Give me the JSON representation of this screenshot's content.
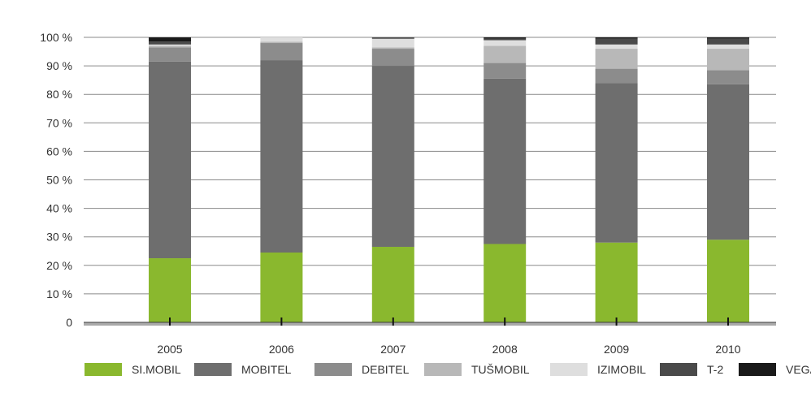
{
  "chart_data": {
    "type": "bar",
    "stacked": true,
    "categories": [
      "2005",
      "2006",
      "2007",
      "2008",
      "2009",
      "2010"
    ],
    "y_tick_labels": [
      "0",
      "10 %",
      "20 %",
      "30 %",
      "40 %",
      "50 %",
      "60 %",
      "70 %",
      "80 %",
      "90 %",
      "100 %"
    ],
    "ylim": [
      0,
      100
    ],
    "grid": true,
    "legend_position": "bottom",
    "series": [
      {
        "name": "SI.MOBIL",
        "color": "#8ab82e",
        "values": [
          22.5,
          24.5,
          26.5,
          27.5,
          28,
          29
        ]
      },
      {
        "name": "MOBITEL",
        "color": "#6e6e6e",
        "values": [
          69,
          67.5,
          63.5,
          58,
          56,
          54.5
        ]
      },
      {
        "name": "DEBITEL",
        "color": "#8c8c8c",
        "values": [
          5,
          6,
          6,
          5.5,
          5,
          5
        ]
      },
      {
        "name": "TUŠMOBIL",
        "color": "#b8b8b8",
        "values": [
          0.5,
          0.5,
          0.5,
          6,
          7,
          7.5
        ]
      },
      {
        "name": "IZIMOBIL",
        "color": "#dedede",
        "values": [
          0.5,
          1.5,
          3,
          2,
          1.5,
          1.5
        ]
      },
      {
        "name": "T-2",
        "color": "#4a4a4a",
        "values": [
          1,
          0,
          0.5,
          0.5,
          2,
          2
        ]
      },
      {
        "name": "VEGA",
        "color": "#1a1a1a",
        "values": [
          1.5,
          0,
          0,
          0.5,
          0.5,
          0.5
        ]
      }
    ]
  }
}
